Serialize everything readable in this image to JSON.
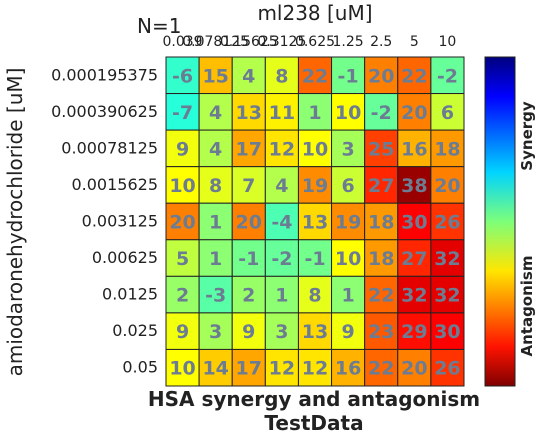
{
  "chart_data": {
    "type": "heatmap",
    "annotation": "N=1",
    "xlabel": "ml238 [uM]",
    "ylabel": "amiodaronehydrochloride [uM]",
    "title": "HSA synergy and antagonism",
    "subtitle": "TestData",
    "x_tick_labels": [
      "0.039",
      "0.078125",
      "0.15625",
      "0.3125",
      "0.625",
      "1.25",
      "2.5",
      "5",
      "10"
    ],
    "y_tick_labels": [
      "0.000195375",
      "0.000390625",
      "0.00078125",
      "0.0015625",
      "0.003125",
      "0.00625",
      "0.0125",
      "0.025",
      "0.05"
    ],
    "values": [
      [
        -6,
        15,
        4,
        8,
        22,
        -1,
        20,
        22,
        -2
      ],
      [
        -7,
        4,
        13,
        11,
        1,
        10,
        -2,
        20,
        6
      ],
      [
        9,
        4,
        17,
        12,
        10,
        3,
        25,
        16,
        18
      ],
      [
        10,
        8,
        7,
        4,
        19,
        6,
        27,
        38,
        20
      ],
      [
        20,
        1,
        20,
        -4,
        13,
        19,
        18,
        30,
        26
      ],
      [
        5,
        1,
        -1,
        -2,
        -1,
        10,
        18,
        27,
        32
      ],
      [
        2,
        -3,
        2,
        1,
        8,
        1,
        22,
        32,
        32
      ],
      [
        9,
        3,
        9,
        3,
        13,
        9,
        23,
        29,
        30
      ],
      [
        10,
        14,
        17,
        12,
        12,
        16,
        22,
        20,
        26
      ]
    ],
    "color_range": [
      -40,
      40
    ],
    "colormap": "jet",
    "colorbar_labels": {
      "top": "Synergy",
      "bottom": "Antagonism"
    },
    "colorbar_orientation": "reversed (synergy at top)"
  }
}
